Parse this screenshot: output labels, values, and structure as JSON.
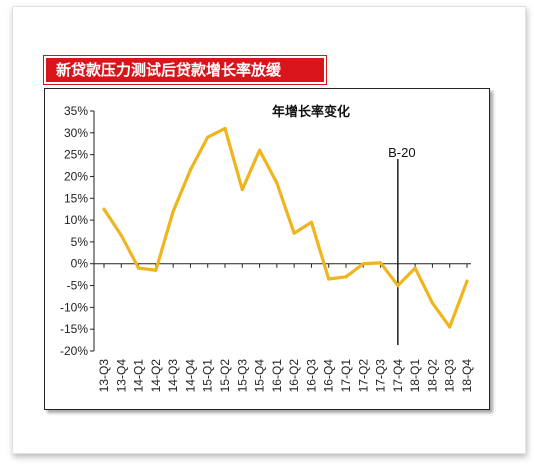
{
  "banner": {
    "title": "新贷款压力测试后贷款增长率放缓"
  },
  "colors": {
    "banner_bg": "#d7151b",
    "line": "#f0b41c",
    "axis": "#222222"
  },
  "chart_data": {
    "type": "line",
    "title": "年增长率变化",
    "xlabel": "",
    "ylabel": "",
    "y_unit": "%",
    "ylim": [
      -20,
      35
    ],
    "yticks": [
      35,
      30,
      25,
      20,
      15,
      10,
      5,
      0,
      -5,
      -10,
      -15,
      -20
    ],
    "ytick_labels": [
      "35%",
      "30%",
      "25%",
      "20%",
      "15%",
      "10%",
      "5%",
      "0%",
      "-5%",
      "-10%",
      "-15%",
      "-20%"
    ],
    "grid": false,
    "legend": "none",
    "categories": [
      "13-Q3",
      "13-Q4",
      "14-Q1",
      "14-Q2",
      "14-Q3",
      "14-Q4",
      "15-Q1",
      "15-Q2",
      "15-Q3",
      "15-Q4",
      "16-Q1",
      "16-Q2",
      "16-Q3",
      "16-Q4",
      "17-Q1",
      "17-Q2",
      "17-Q3",
      "17-Q4",
      "18-Q1",
      "18-Q2",
      "18-Q3",
      "18-Q4"
    ],
    "x": [
      0,
      0.75,
      1.5,
      2.25,
      3,
      3.75,
      4.5,
      5.25,
      6,
      6.75,
      7.5,
      8.25,
      9,
      9.75,
      10.5,
      11.25,
      12,
      12.75,
      13.5,
      14.25,
      15,
      15.75,
      16.5,
      17.25,
      18,
      18.75,
      19.5,
      20.25,
      21,
      21.75
    ],
    "series": [
      {
        "values": [
          12.5,
          6.5,
          -1,
          -1.5,
          12,
          21.5,
          29,
          31,
          17,
          26,
          18.5,
          7,
          9.5,
          -3.5,
          -3,
          0,
          0.2,
          -5,
          -1,
          -9,
          -14.5,
          -4
        ],
        "x": [
          0,
          1,
          2,
          3,
          4,
          5,
          6,
          7,
          8,
          9,
          10,
          11,
          12,
          13,
          14,
          15,
          16,
          17,
          18,
          19,
          20,
          21
        ]
      }
    ],
    "annotations": [
      {
        "label": "B-20",
        "x_category": "17-Q4"
      }
    ]
  }
}
